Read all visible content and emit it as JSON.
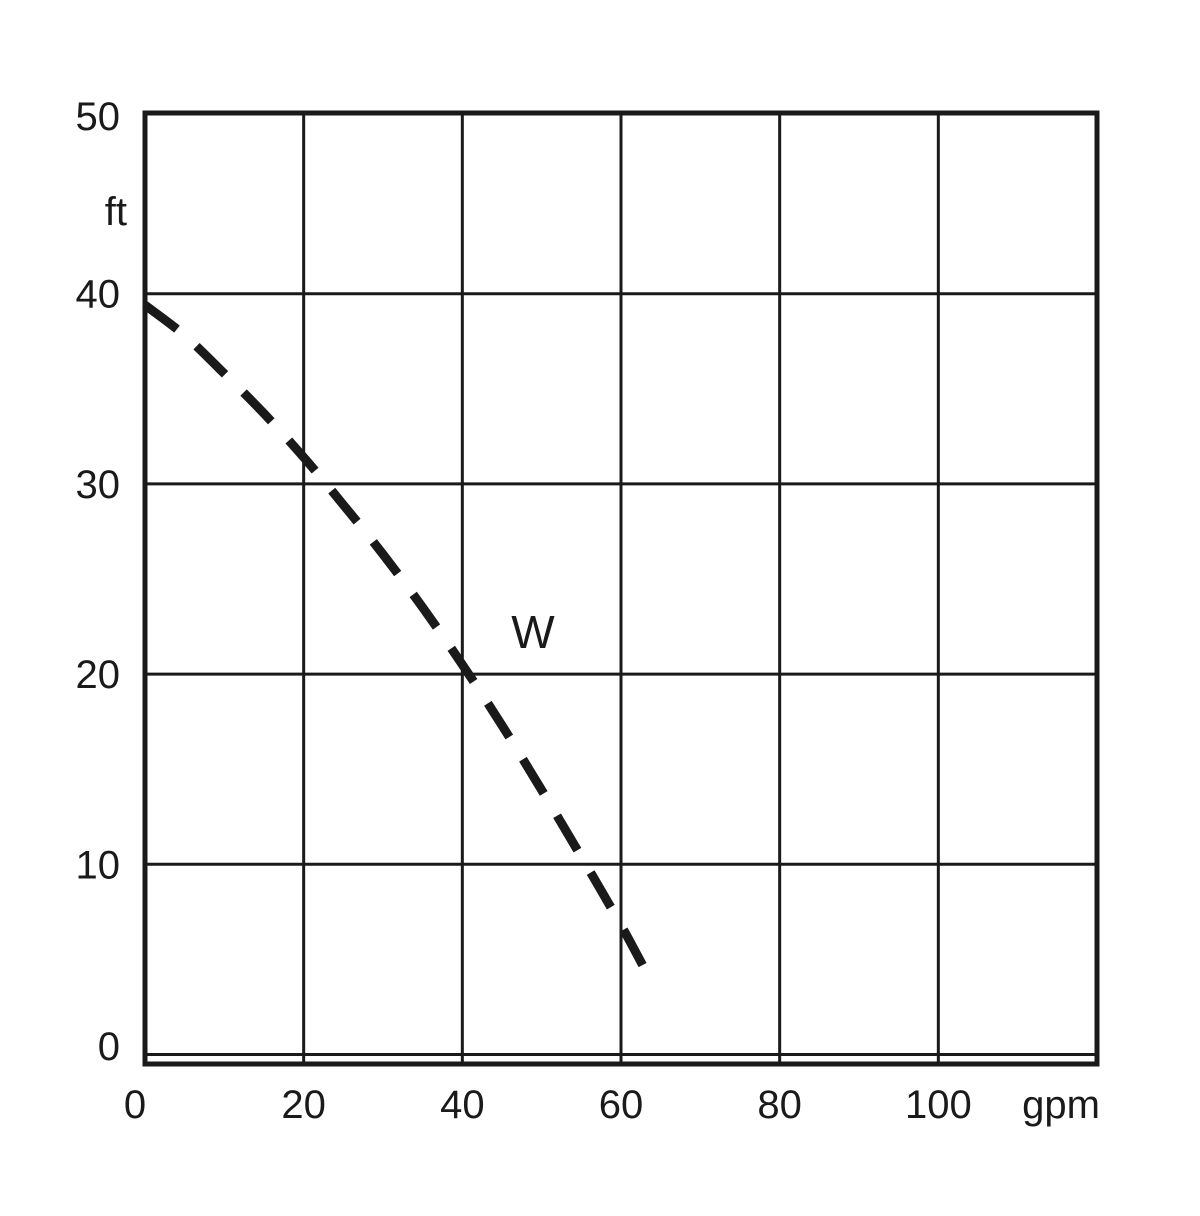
{
  "chart_data": {
    "type": "line",
    "title": "",
    "xlabel": "gpm",
    "ylabel": "ft",
    "xlim": [
      0,
      120
    ],
    "ylim": [
      -0.5,
      49.5
    ],
    "x_ticks": [
      0,
      20,
      40,
      60,
      80,
      100
    ],
    "y_ticks": [
      0,
      10,
      20,
      30,
      40,
      50
    ],
    "x_tick_labels": [
      "0",
      "20",
      "40",
      "60",
      "80",
      "100"
    ],
    "y_tick_labels": [
      "0",
      "10",
      "20",
      "30",
      "40",
      "50"
    ],
    "grid": true,
    "series": [
      {
        "name": "W",
        "style": "dashed",
        "color": "#1a1a1a",
        "x": [
          0,
          5,
          10,
          15,
          20,
          25,
          30,
          35,
          40,
          45,
          50,
          55,
          60,
          64
        ],
        "y": [
          39.4,
          37.8,
          35.8,
          33.7,
          31.4,
          28.9,
          26.3,
          23.5,
          20.5,
          17.3,
          13.9,
          10.4,
          6.8,
          3.7
        ]
      }
    ]
  }
}
